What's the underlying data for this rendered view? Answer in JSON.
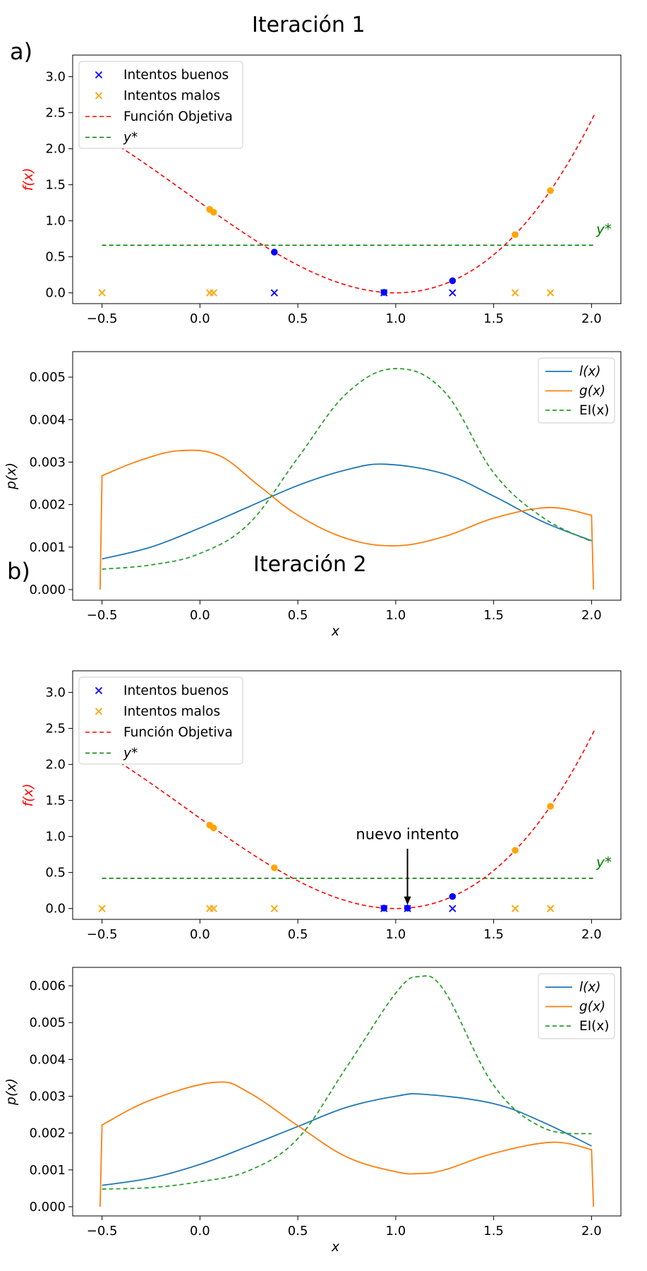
{
  "figure": {
    "sections": [
      {
        "letter": "a)",
        "title": "Iteración 1"
      },
      {
        "letter": "b)",
        "title": "Iteración 2"
      }
    ]
  },
  "colors": {
    "good": "#0000ff",
    "bad": "#ffa500",
    "objective": "#ff0000",
    "ystar": "#008000",
    "l": "#1f77b4",
    "g": "#ff7f0e",
    "ei": "#2ca02c"
  },
  "chart_data": [
    {
      "type": "scatter",
      "panel": "a-top",
      "ylabel": "f(x)",
      "xlim": [
        -0.65,
        2.15
      ],
      "ylim": [
        -0.15,
        3.3
      ],
      "xticks": [
        -0.5,
        0.0,
        0.5,
        1.0,
        1.5,
        2.0
      ],
      "xtick_labels": [
        "−0.5",
        "0.0",
        "0.5",
        "1.0",
        "1.5",
        "2.0"
      ],
      "yticks": [
        0.0,
        0.5,
        1.0,
        1.5,
        2.0,
        2.5,
        3.0
      ],
      "ytick_labels": [
        "0.0",
        "0.5",
        "1.0",
        "1.5",
        "2.0",
        "2.5",
        "3.0"
      ],
      "legend": [
        "Intentos buenos",
        "Intentos malos",
        "Función Objetiva",
        "y*"
      ],
      "legend_position": "upper-left",
      "ystar": 0.66,
      "ystar_label": "y*",
      "good_x": [
        0.38,
        0.94,
        1.29
      ],
      "bad_x": [
        -0.5,
        0.05,
        0.07,
        1.61,
        1.79
      ],
      "objective_domain": [
        -0.5,
        2.02
      ]
    },
    {
      "type": "line",
      "panel": "a-bottom",
      "xlabel": "x",
      "ylabel": "p(x)",
      "xlim": [
        -0.65,
        2.15
      ],
      "ylim": [
        -0.00025,
        0.0056
      ],
      "xticks": [
        -0.5,
        0.0,
        0.5,
        1.0,
        1.5,
        2.0
      ],
      "xtick_labels": [
        "−0.5",
        "0.0",
        "0.5",
        "1.0",
        "1.5",
        "2.0"
      ],
      "yticks": [
        0.0,
        0.001,
        0.002,
        0.003,
        0.004,
        0.005
      ],
      "ytick_labels": [
        "0.000",
        "0.001",
        "0.002",
        "0.003",
        "0.004",
        "0.005"
      ],
      "legend": [
        "l(x)",
        "g(x)",
        "EI(x)"
      ],
      "legend_position": "upper-right",
      "series": [
        {
          "name": "l(x)",
          "x": [
            -0.5,
            -0.25,
            0.0,
            0.25,
            0.5,
            0.75,
            0.95,
            1.25,
            1.5,
            1.75,
            2.0
          ],
          "values": [
            0.00072,
            0.001,
            0.00145,
            0.00195,
            0.00245,
            0.00282,
            0.00295,
            0.00272,
            0.0022,
            0.0016,
            0.00115
          ]
        },
        {
          "name": "g(x)",
          "x": [
            -0.51,
            -0.5,
            -0.3,
            -0.1,
            0.1,
            0.3,
            0.5,
            0.75,
            1.0,
            1.25,
            1.5,
            1.78,
            2.0,
            2.01
          ],
          "values": [
            0.0,
            0.00268,
            0.00305,
            0.00327,
            0.00315,
            0.00245,
            0.00175,
            0.0012,
            0.00103,
            0.00125,
            0.00168,
            0.00193,
            0.00175,
            0.0
          ]
        },
        {
          "name": "EI(x)",
          "x": [
            -0.5,
            -0.25,
            0.0,
            0.25,
            0.5,
            0.75,
            1.0,
            1.25,
            1.5,
            1.75,
            2.0
          ],
          "values": [
            0.00048,
            0.00058,
            0.00085,
            0.00155,
            0.0031,
            0.00462,
            0.0052,
            0.00465,
            0.00275,
            0.0017,
            0.00113
          ]
        }
      ]
    },
    {
      "type": "scatter",
      "panel": "b-top",
      "ylabel": "f(x)",
      "xlim": [
        -0.65,
        2.15
      ],
      "ylim": [
        -0.15,
        3.3
      ],
      "xticks": [
        -0.5,
        0.0,
        0.5,
        1.0,
        1.5,
        2.0
      ],
      "xtick_labels": [
        "−0.5",
        "0.0",
        "0.5",
        "1.0",
        "1.5",
        "2.0"
      ],
      "yticks": [
        0.0,
        0.5,
        1.0,
        1.5,
        2.0,
        2.5,
        3.0
      ],
      "ytick_labels": [
        "0.0",
        "0.5",
        "1.0",
        "1.5",
        "2.0",
        "2.5",
        "3.0"
      ],
      "legend": [
        "Intentos buenos",
        "Intentos malos",
        "Función Objetiva",
        "y*"
      ],
      "legend_position": "upper-left",
      "ystar": 0.42,
      "ystar_label": "y*",
      "good_x": [
        0.94,
        1.06,
        1.29
      ],
      "bad_x": [
        -0.5,
        0.05,
        0.07,
        0.38,
        1.61,
        1.79
      ],
      "objective_domain": [
        -0.5,
        2.02
      ],
      "annotation": {
        "text": "nuevo intento",
        "x": 1.06
      }
    },
    {
      "type": "line",
      "panel": "b-bottom",
      "xlabel": "x",
      "ylabel": "p(x)",
      "xlim": [
        -0.65,
        2.15
      ],
      "ylim": [
        -0.00025,
        0.0065
      ],
      "xticks": [
        -0.5,
        0.0,
        0.5,
        1.0,
        1.5,
        2.0
      ],
      "xtick_labels": [
        "−0.5",
        "0.0",
        "0.5",
        "1.0",
        "1.5",
        "2.0"
      ],
      "yticks": [
        0.0,
        0.001,
        0.002,
        0.003,
        0.004,
        0.005,
        0.006
      ],
      "ytick_labels": [
        "0.000",
        "0.001",
        "0.002",
        "0.003",
        "0.004",
        "0.005",
        "0.006"
      ],
      "legend": [
        "l(x)",
        "g(x)",
        "EI(x)"
      ],
      "legend_position": "upper-right",
      "series": [
        {
          "name": "l(x)",
          "x": [
            -0.5,
            -0.25,
            0.0,
            0.25,
            0.5,
            0.75,
            1.0,
            1.15,
            1.5,
            1.75,
            2.0
          ],
          "values": [
            0.00058,
            0.00078,
            0.00115,
            0.00165,
            0.00218,
            0.0027,
            0.003,
            0.00305,
            0.0028,
            0.0023,
            0.00165
          ]
        },
        {
          "name": "g(x)",
          "x": [
            -0.51,
            -0.5,
            -0.25,
            0.08,
            0.25,
            0.5,
            0.75,
            1.0,
            1.12,
            1.25,
            1.5,
            1.8,
            2.0,
            2.01
          ],
          "values": [
            0.0,
            0.00222,
            0.0029,
            0.00338,
            0.0031,
            0.0022,
            0.00135,
            0.00095,
            0.0009,
            0.001,
            0.00145,
            0.00175,
            0.00155,
            0.0
          ]
        },
        {
          "name": "EI(x)",
          "x": [
            -0.5,
            -0.25,
            0.0,
            0.25,
            0.5,
            0.75,
            1.0,
            1.12,
            1.25,
            1.5,
            1.75,
            2.0
          ],
          "values": [
            0.00048,
            0.00052,
            0.00068,
            0.00098,
            0.00185,
            0.0038,
            0.0058,
            0.00625,
            0.00585,
            0.0033,
            0.00215,
            0.00198
          ]
        }
      ]
    }
  ]
}
